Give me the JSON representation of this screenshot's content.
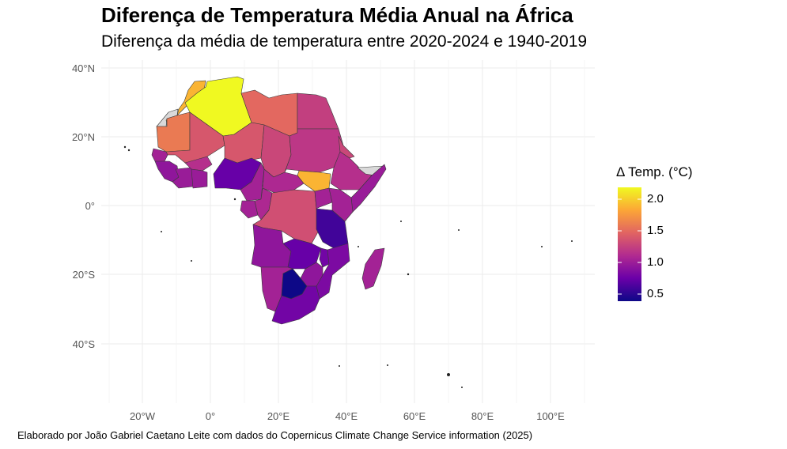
{
  "title": "Diferença de Temperatura Média Anual na África",
  "subtitle": "Diferença da média de temperatura entre 2020-2024 e 1940-2019",
  "caption": "Elaborado por João Gabriel Caetano Leite com dados do Copernicus Climate Change Service information (2025)",
  "chart_data": {
    "type": "choropleth",
    "x_ticks": [
      "20°W",
      "0°",
      "20°E",
      "40°E",
      "60°E",
      "80°E",
      "100°E"
    ],
    "y_ticks": [
      "40°N",
      "20°N",
      "0°",
      "20°S",
      "40°S"
    ],
    "grid": true,
    "legend": {
      "title": "Δ Temp. (°C)",
      "position": "right",
      "range": [
        0.4,
        2.2
      ],
      "breaks": [
        "2.0",
        "1.5",
        "1.0",
        "0.5"
      ],
      "colors": [
        "#0d0887",
        "#6a00a8",
        "#b12a90",
        "#e16462",
        "#fca636",
        "#f0f921"
      ],
      "no_data_color": "#d9d9d9"
    },
    "regions": [
      {
        "name": "Algeria",
        "value": 2.2
      },
      {
        "name": "Morocco",
        "value": 1.9
      },
      {
        "name": "Libya",
        "value": 1.5
      },
      {
        "name": "Egypt",
        "value": 1.25
      },
      {
        "name": "Mauritania",
        "value": 1.6
      },
      {
        "name": "Mali",
        "value": 1.4
      },
      {
        "name": "Niger",
        "value": 1.4
      },
      {
        "name": "Chad",
        "value": 1.3
      },
      {
        "name": "Sudan",
        "value": 1.2
      },
      {
        "name": "South Sudan",
        "value": 1.9
      },
      {
        "name": "Ethiopia",
        "value": 1.15
      },
      {
        "name": "Eritrea",
        "value": 1.3
      },
      {
        "name": "Somalia",
        "value": 1.0
      },
      {
        "name": "Kenya",
        "value": 1.05
      },
      {
        "name": "Senegal",
        "value": 1.05
      },
      {
        "name": "Guinea",
        "value": 0.95
      },
      {
        "name": "Côte d'Ivoire",
        "value": 1.0
      },
      {
        "name": "Burkina Faso",
        "value": 1.15
      },
      {
        "name": "Ghana",
        "value": 1.0
      },
      {
        "name": "Nigeria",
        "value": 0.75
      },
      {
        "name": "Cameroon",
        "value": 1.05
      },
      {
        "name": "Central African Republic",
        "value": 1.1
      },
      {
        "name": "Gabon",
        "value": 1.05
      },
      {
        "name": "Congo",
        "value": 1.1
      },
      {
        "name": "DR Congo",
        "value": 1.35
      },
      {
        "name": "Uganda",
        "value": 1.05
      },
      {
        "name": "Tanzania",
        "value": 0.6
      },
      {
        "name": "Angola",
        "value": 0.95
      },
      {
        "name": "Zambia",
        "value": 0.75
      },
      {
        "name": "Malawi",
        "value": 0.8
      },
      {
        "name": "Mozambique",
        "value": 0.85
      },
      {
        "name": "Zimbabwe",
        "value": 0.95
      },
      {
        "name": "Namibia",
        "value": 1.05
      },
      {
        "name": "Botswana",
        "value": 0.4
      },
      {
        "name": "South Africa",
        "value": 0.8
      },
      {
        "name": "Madagascar",
        "value": 1.05
      },
      {
        "name": "Western Sahara",
        "value": null
      }
    ]
  }
}
